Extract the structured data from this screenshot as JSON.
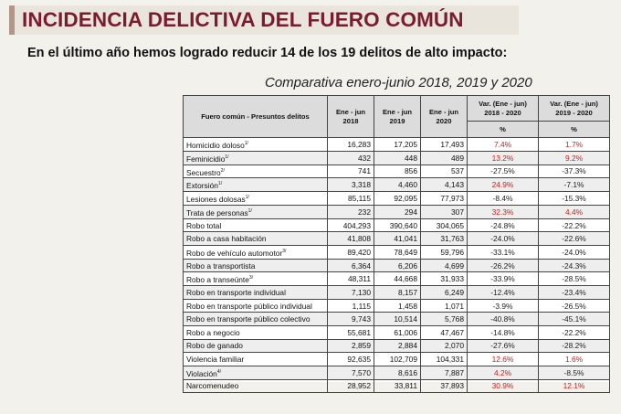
{
  "header": {
    "title": "INCIDENCIA DELICTIVA DEL FUERO COMÚN",
    "subtitle": "En el último año hemos logrado reducir 14 de los 19 delitos de alto impacto:",
    "comparison_title": "Comparativa enero-junio 2018, 2019 y 2020"
  },
  "table": {
    "headers": {
      "crime": "Fuero común - Presuntos delitos",
      "y2018_line1": "Ene - jun",
      "y2018_line2": "2018",
      "y2019_line1": "Ene - jun",
      "y2019_line2": "2019",
      "y2020_line1": "Ene - jun",
      "y2020_line2": "2020",
      "var1_line1": "Var. (Ene - jun)",
      "var1_line2": "2018 - 2020",
      "var2_line1": "Var. (Ene - jun)",
      "var2_line2": "2019 - 2020",
      "pct1": "%",
      "pct2": "%"
    },
    "rows": [
      {
        "name": "Homicidio doloso",
        "sup": "1/",
        "y2018": "16,283",
        "y2019": "17,205",
        "y2020": "17,493",
        "var1": "7.4%",
        "var2": "1.7%",
        "var1_up": true,
        "var2_up": true
      },
      {
        "name": "Feminicidio",
        "sup": "1/",
        "y2018": "432",
        "y2019": "448",
        "y2020": "489",
        "var1": "13.2%",
        "var2": "9.2%",
        "var1_up": true,
        "var2_up": true
      },
      {
        "name": "Secuestro",
        "sup": "2/",
        "y2018": "741",
        "y2019": "856",
        "y2020": "537",
        "var1": "-27.5%",
        "var2": "-37.3%",
        "var1_up": false,
        "var2_up": false
      },
      {
        "name": "Extorsión",
        "sup": "1/",
        "y2018": "3,318",
        "y2019": "4,460",
        "y2020": "4,143",
        "var1": "24.9%",
        "var2": "-7.1%",
        "var1_up": true,
        "var2_up": false
      },
      {
        "name": "Lesiones dolosas",
        "sup": "1/",
        "y2018": "85,115",
        "y2019": "92,095",
        "y2020": "77,973",
        "var1": "-8.4%",
        "var2": "-15.3%",
        "var1_up": false,
        "var2_up": false
      },
      {
        "name": "Trata de personas",
        "sup": "1/",
        "y2018": "232",
        "y2019": "294",
        "y2020": "307",
        "var1": "32.3%",
        "var2": "4.4%",
        "var1_up": true,
        "var2_up": true
      },
      {
        "name": "Robo total",
        "sup": "",
        "y2018": "404,293",
        "y2019": "390,640",
        "y2020": "304,065",
        "var1": "-24.8%",
        "var2": "-22.2%",
        "var1_up": false,
        "var2_up": false
      },
      {
        "name": "Robo a casa habitación",
        "sup": "",
        "y2018": "41,808",
        "y2019": "41,041",
        "y2020": "31,763",
        "var1": "-24.0%",
        "var2": "-22.6%",
        "var1_up": false,
        "var2_up": false
      },
      {
        "name": "Robo de vehículo automotor",
        "sup": "3/",
        "y2018": "89,420",
        "y2019": "78,649",
        "y2020": "59,796",
        "var1": "-33.1%",
        "var2": "-24.0%",
        "var1_up": false,
        "var2_up": false
      },
      {
        "name": "Robo a transportista",
        "sup": "",
        "y2018": "6,364",
        "y2019": "6,206",
        "y2020": "4,699",
        "var1": "-26.2%",
        "var2": "-24.3%",
        "var1_up": false,
        "var2_up": false
      },
      {
        "name": "Robo a transeúnte",
        "sup": "3/",
        "y2018": "48,311",
        "y2019": "44,668",
        "y2020": "31,933",
        "var1": "-33.9%",
        "var2": "-28.5%",
        "var1_up": false,
        "var2_up": false
      },
      {
        "name": "Robo en transporte individual",
        "sup": "",
        "y2018": "7,130",
        "y2019": "8,157",
        "y2020": "6,249",
        "var1": "-12.4%",
        "var2": "-23.4%",
        "var1_up": false,
        "var2_up": false
      },
      {
        "name": "Robo en transporte público individual",
        "sup": "",
        "y2018": "1,115",
        "y2019": "1,458",
        "y2020": "1,071",
        "var1": "-3.9%",
        "var2": "-26.5%",
        "var1_up": false,
        "var2_up": false
      },
      {
        "name": "Robo en transporte público colectivo",
        "sup": "",
        "y2018": "9,743",
        "y2019": "10,514",
        "y2020": "5,768",
        "var1": "-40.8%",
        "var2": "-45.1%",
        "var1_up": false,
        "var2_up": false
      },
      {
        "name": "Robo a negocio",
        "sup": "",
        "y2018": "55,681",
        "y2019": "61,006",
        "y2020": "47,467",
        "var1": "-14.8%",
        "var2": "-22.2%",
        "var1_up": false,
        "var2_up": false
      },
      {
        "name": "Robo de ganado",
        "sup": "",
        "y2018": "2,859",
        "y2019": "2,884",
        "y2020": "2,070",
        "var1": "-27.6%",
        "var2": "-28.2%",
        "var1_up": false,
        "var2_up": false
      },
      {
        "name": "Violencia familiar",
        "sup": "",
        "y2018": "92,635",
        "y2019": "102,709",
        "y2020": "104,331",
        "var1": "12.6%",
        "var2": "1.6%",
        "var1_up": true,
        "var2_up": true
      },
      {
        "name": "Violación",
        "sup": "4/",
        "y2018": "7,570",
        "y2019": "8,616",
        "y2020": "7,887",
        "var1": "4.2%",
        "var2": "-8.5%",
        "var1_up": true,
        "var2_up": false
      },
      {
        "name": "Narcomenudeo",
        "sup": "",
        "y2018": "28,952",
        "y2019": "33,811",
        "y2020": "37,893",
        "var1": "30.9%",
        "var2": "12.1%",
        "var1_up": true,
        "var2_up": true
      }
    ]
  },
  "colors": {
    "title": "#7b1c2e",
    "increase": "#d81818",
    "decrease": "#222222"
  }
}
